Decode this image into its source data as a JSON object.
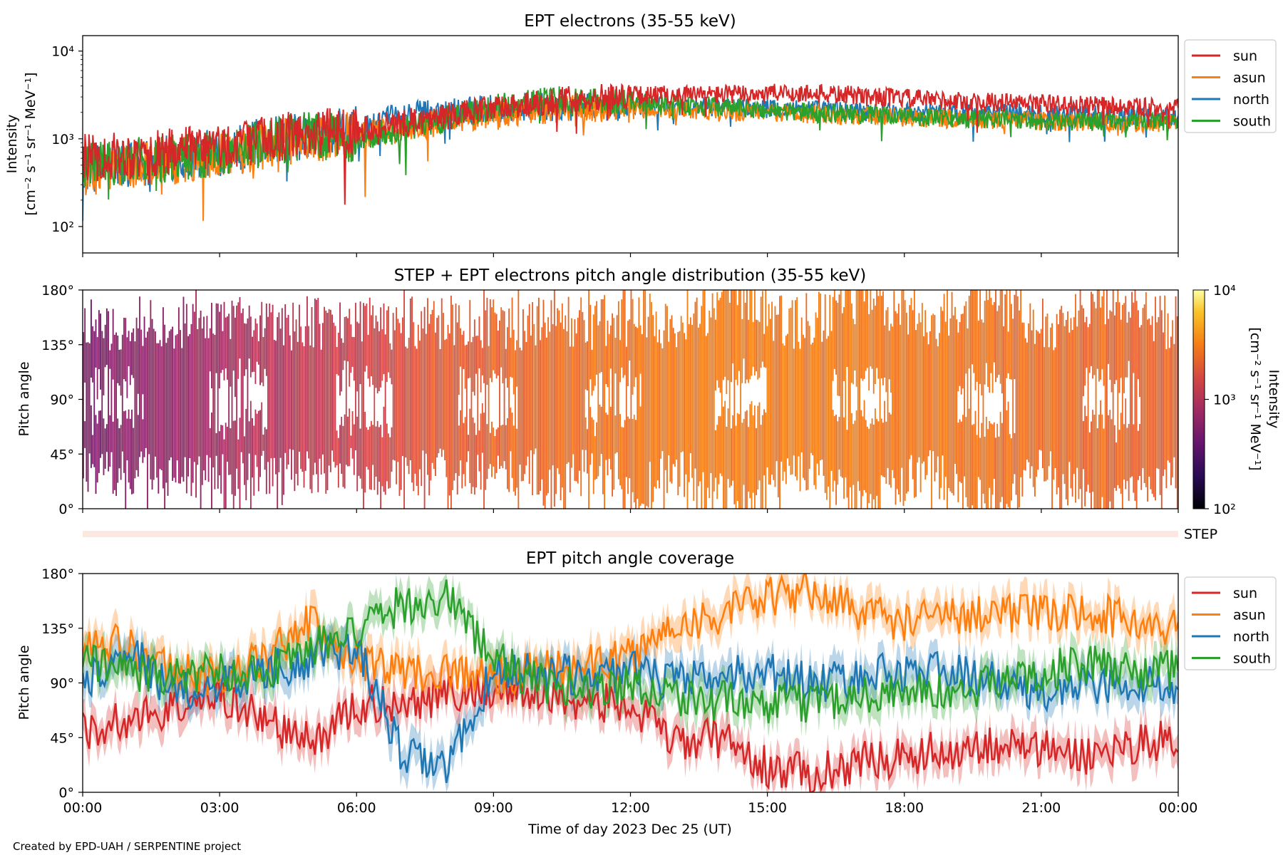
{
  "chart_data": [
    {
      "type": "line",
      "title": "EPT electrons (35-55 keV)",
      "ylabel": [
        "Intensity",
        "[cm⁻² s⁻¹ sr⁻¹ MeV⁻¹]"
      ],
      "yscale": "log",
      "ylim": [
        50,
        15000
      ],
      "ytick_labels": [
        "10²",
        "10³",
        "10⁴"
      ],
      "xlim": [
        0,
        24
      ],
      "legend_placement": "outside right, top",
      "x_hours": [
        0,
        1,
        2,
        3,
        4,
        5,
        6,
        7,
        8,
        9,
        10,
        11,
        12,
        13,
        14,
        15,
        16,
        17,
        18,
        19,
        20,
        21,
        22,
        23,
        24
      ],
      "series": [
        {
          "name": "sun",
          "color": "#d62728",
          "values": [
            600,
            650,
            700,
            800,
            1000,
            1150,
            1300,
            1500,
            1800,
            2200,
            2600,
            2900,
            3100,
            3200,
            3200,
            3300,
            3300,
            3100,
            2900,
            2700,
            2600,
            2500,
            2400,
            2300,
            2200
          ]
        },
        {
          "name": "asun",
          "color": "#ff7f0e",
          "values": [
            400,
            480,
            550,
            650,
            850,
            1000,
            1100,
            1300,
            1600,
            1900,
            2100,
            2200,
            2200,
            2100,
            2000,
            2000,
            1900,
            1850,
            1750,
            1700,
            1650,
            1600,
            1550,
            1500,
            1500
          ]
        },
        {
          "name": "north",
          "color": "#1f77b4",
          "values": [
            450,
            520,
            600,
            700,
            950,
            1100,
            1250,
            1800,
            2100,
            2200,
            2300,
            2300,
            2300,
            2350,
            2300,
            2200,
            2200,
            2100,
            2050,
            2000,
            2000,
            1950,
            1900,
            1850,
            1800
          ]
        },
        {
          "name": "south",
          "color": "#2ca02c",
          "values": [
            500,
            550,
            600,
            700,
            900,
            1100,
            1000,
            1200,
            1700,
            2300,
            2700,
            2800,
            2700,
            2500,
            2300,
            2100,
            2000,
            1900,
            1800,
            1700,
            1700,
            1600,
            1600,
            1600,
            1600
          ]
        }
      ]
    },
    {
      "type": "heatmap",
      "title": "STEP + EPT electrons pitch angle distribution (35-55 keV)",
      "ylabel": "Pitch angle",
      "ylim": [
        0,
        180
      ],
      "ytick_labels": [
        "0°",
        "45°",
        "90°",
        "135°",
        "180°"
      ],
      "colorbar": {
        "label": [
          "Intensity",
          "[cm⁻² s⁻¹ sr⁻¹ MeV⁻¹]"
        ],
        "scale": "log",
        "range": [
          100,
          10000
        ],
        "tick_labels": [
          "10²",
          "10³",
          "10⁴"
        ],
        "colormap": "inferno"
      },
      "x_hours": [
        0,
        2,
        4,
        6,
        8,
        10,
        12,
        14,
        16,
        18,
        20,
        22,
        24
      ],
      "intensity": [
        500,
        700,
        1000,
        1300,
        2000,
        2500,
        2800,
        3000,
        3000,
        2800,
        2600,
        2400,
        2200
      ]
    },
    {
      "type": "bar",
      "label": "STEP",
      "xlim": [
        0,
        24
      ]
    },
    {
      "type": "line",
      "title": "EPT pitch angle coverage",
      "ylabel": "Pitch angle",
      "xlabel": "Time of day 2023 Dec 25 (UT)",
      "ylim": [
        0,
        180
      ],
      "ytick_labels": [
        "0°",
        "45°",
        "90°",
        "135°",
        "180°"
      ],
      "xtick_labels": [
        "00:00",
        "03:00",
        "06:00",
        "09:00",
        "12:00",
        "15:00",
        "18:00",
        "21:00",
        "00:00"
      ],
      "legend_placement": "outside right, top",
      "x_hours": [
        0,
        1,
        2,
        3,
        4,
        5,
        6,
        7,
        8,
        9,
        10,
        11,
        12,
        13,
        14,
        15,
        16,
        17,
        18,
        19,
        20,
        21,
        22,
        23,
        24
      ],
      "series": [
        {
          "name": "sun",
          "color": "#d62728",
          "values": [
            50,
            60,
            70,
            80,
            60,
            40,
            70,
            75,
            80,
            85,
            80,
            75,
            70,
            40,
            45,
            20,
            15,
            25,
            30,
            35,
            40,
            35,
            30,
            40,
            45
          ]
        },
        {
          "name": "asun",
          "color": "#ff7f0e",
          "values": [
            130,
            120,
            100,
            95,
            110,
            140,
            110,
            100,
            100,
            95,
            100,
            105,
            110,
            140,
            145,
            160,
            165,
            150,
            140,
            145,
            150,
            145,
            150,
            140,
            135
          ]
        },
        {
          "name": "north",
          "color": "#1f77b4",
          "values": [
            90,
            120,
            80,
            90,
            100,
            110,
            120,
            30,
            20,
            100,
            100,
            95,
            100,
            90,
            95,
            100,
            90,
            95,
            100,
            100,
            90,
            80,
            90,
            85,
            90
          ]
        },
        {
          "name": "south",
          "color": "#2ca02c",
          "values": [
            110,
            100,
            95,
            100,
            100,
            120,
            130,
            155,
            160,
            110,
            90,
            85,
            90,
            80,
            75,
            70,
            75,
            80,
            85,
            80,
            90,
            100,
            105,
            100,
            100
          ]
        }
      ]
    }
  ],
  "footer": "Created by EPD-UAH / SERPENTINE project"
}
